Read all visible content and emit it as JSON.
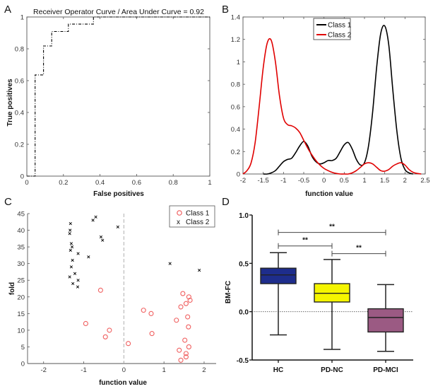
{
  "chart_data": [
    {
      "panel": "A",
      "type": "line",
      "title": "Receiver Operator Curve / Area Under Curve = 0.92",
      "xlabel": "False positives",
      "ylabel": "True positives",
      "xlim": [
        0,
        1
      ],
      "ylim": [
        0,
        1
      ],
      "xticks": [
        "0",
        "0.2",
        "0.4",
        "0.6",
        "0.8",
        "1"
      ],
      "yticks": [
        "0",
        "0.2",
        "0.4",
        "0.6",
        "0.8",
        "1"
      ],
      "grid": false,
      "series": [
        {
          "name": "ROC",
          "style": "dash-dot",
          "color": "#000000",
          "x": [
            0,
            0.045,
            0.045,
            0.091,
            0.091,
            0.136,
            0.136,
            0.227,
            0.227,
            0.364,
            0.364,
            1.0
          ],
          "y": [
            0,
            0,
            0.636,
            0.636,
            0.818,
            0.818,
            0.909,
            0.909,
            0.955,
            0.955,
            1.0,
            1.0
          ]
        }
      ]
    },
    {
      "panel": "B",
      "type": "line",
      "title": "",
      "xlabel": "function value",
      "ylabel": "",
      "xlim": [
        -2,
        2.5
      ],
      "ylim": [
        0,
        1.4
      ],
      "xticks": [
        "-2",
        "-1.5",
        "-1",
        "-0.5",
        "0",
        "0.5",
        "1",
        "1.5",
        "2",
        "2.5"
      ],
      "yticks": [
        "0",
        "0.2",
        "0.4",
        "0.6",
        "0.8",
        "1",
        "1.2",
        "1.4"
      ],
      "legend": {
        "position": "top-center",
        "entries": [
          "Class 1",
          "Class 2"
        ]
      },
      "grid": false,
      "series": [
        {
          "name": "Class 1",
          "color": "#000000",
          "x": [
            -1.5,
            -1.4,
            -1.3,
            -1.2,
            -1.1,
            -1.0,
            -0.9,
            -0.8,
            -0.7,
            -0.6,
            -0.5,
            -0.4,
            -0.3,
            -0.2,
            -0.1,
            0.0,
            0.1,
            0.2,
            0.3,
            0.4,
            0.5,
            0.6,
            0.7,
            0.8,
            0.9,
            1.0,
            1.1,
            1.2,
            1.3,
            1.4,
            1.5,
            1.6,
            1.7,
            1.8,
            1.9,
            2.0,
            2.1,
            2.2
          ],
          "y": [
            0.0,
            0.0,
            0.01,
            0.03,
            0.07,
            0.11,
            0.13,
            0.14,
            0.19,
            0.25,
            0.29,
            0.25,
            0.16,
            0.11,
            0.09,
            0.1,
            0.12,
            0.12,
            0.14,
            0.2,
            0.26,
            0.28,
            0.22,
            0.13,
            0.08,
            0.1,
            0.25,
            0.55,
            0.95,
            1.25,
            1.32,
            1.15,
            0.75,
            0.38,
            0.14,
            0.04,
            0.01,
            0.0
          ]
        },
        {
          "name": "Class 2",
          "color": "#e00000",
          "x": [
            -2.0,
            -1.9,
            -1.8,
            -1.7,
            -1.6,
            -1.5,
            -1.4,
            -1.3,
            -1.2,
            -1.1,
            -1.0,
            -0.9,
            -0.8,
            -0.7,
            -0.6,
            -0.5,
            -0.4,
            -0.3,
            -0.2,
            -0.1,
            0.0,
            0.1,
            0.2,
            0.3,
            0.4,
            0.5,
            0.6,
            0.7,
            0.8,
            0.9,
            1.0,
            1.1,
            1.2,
            1.3,
            1.4,
            1.5,
            1.6,
            1.7,
            1.8,
            1.9,
            2.0,
            2.1,
            2.2,
            2.3,
            2.4
          ],
          "y": [
            0.0,
            0.03,
            0.1,
            0.28,
            0.6,
            0.95,
            1.17,
            1.19,
            1.0,
            0.7,
            0.5,
            0.44,
            0.43,
            0.41,
            0.37,
            0.3,
            0.23,
            0.17,
            0.12,
            0.08,
            0.05,
            0.03,
            0.015,
            0.005,
            0.0,
            0.0,
            0.0,
            0.01,
            0.03,
            0.06,
            0.09,
            0.1,
            0.09,
            0.06,
            0.03,
            0.025,
            0.04,
            0.07,
            0.09,
            0.1,
            0.08,
            0.04,
            0.015,
            0.005,
            0.0
          ]
        }
      ]
    },
    {
      "panel": "C",
      "type": "scatter",
      "title": "",
      "xlabel": "function value",
      "ylabel": "fold",
      "xlim": [
        -2.4,
        2.3
      ],
      "ylim": [
        0,
        45
      ],
      "xticks": [
        "-2",
        "-1",
        "0",
        "1",
        "2"
      ],
      "yticks": [
        "0",
        "5",
        "10",
        "15",
        "20",
        "25",
        "30",
        "35",
        "40",
        "45"
      ],
      "reference_line": {
        "x": 0,
        "style": "dashed",
        "color": "#b0b0b0"
      },
      "legend": {
        "position": "top-right",
        "entries": [
          "Class 1",
          "Class 2"
        ]
      },
      "grid": false,
      "series": [
        {
          "name": "Class 1",
          "marker": "circle",
          "color": "#f06060",
          "points": [
            [
              -0.58,
              22
            ],
            [
              -0.95,
              12
            ],
            [
              -0.36,
              10
            ],
            [
              -0.46,
              8
            ],
            [
              0.11,
              6
            ],
            [
              0.49,
              16
            ],
            [
              0.68,
              15
            ],
            [
              0.7,
              9
            ],
            [
              1.47,
              21
            ],
            [
              1.62,
              20
            ],
            [
              1.65,
              19
            ],
            [
              1.55,
              18
            ],
            [
              1.42,
              17
            ],
            [
              1.59,
              14
            ],
            [
              1.31,
              13
            ],
            [
              1.61,
              11
            ],
            [
              1.52,
              7
            ],
            [
              1.62,
              5
            ],
            [
              1.38,
              4
            ],
            [
              1.55,
              3
            ],
            [
              1.55,
              2
            ],
            [
              1.42,
              1
            ]
          ]
        },
        {
          "name": "Class 2",
          "marker": "x",
          "color": "#000000",
          "points": [
            [
              -1.27,
              24
            ],
            [
              -1.15,
              23
            ],
            [
              -1.35,
              26
            ],
            [
              -1.22,
              27
            ],
            [
              -1.31,
              29
            ],
            [
              -1.28,
              31
            ],
            [
              -1.14,
              33
            ],
            [
              -1.33,
              34
            ],
            [
              -1.29,
              35
            ],
            [
              -1.31,
              36
            ],
            [
              -0.88,
              32
            ],
            [
              -1.35,
              39
            ],
            [
              -1.34,
              40
            ],
            [
              -1.33,
              42
            ],
            [
              -0.57,
              38
            ],
            [
              -0.53,
              37
            ],
            [
              -0.77,
              43
            ],
            [
              -0.7,
              44
            ],
            [
              -0.15,
              41
            ],
            [
              1.15,
              30
            ],
            [
              1.88,
              28
            ],
            [
              -1.14,
              25
            ]
          ]
        }
      ]
    },
    {
      "panel": "D",
      "type": "box",
      "title": "",
      "xlabel": "",
      "ylabel": "BM-FC",
      "ylim": [
        -0.5,
        1.0
      ],
      "yticks": [
        "-0.5",
        "0.0",
        "0.5",
        "1.0"
      ],
      "categories": [
        "HC",
        "PD-NC",
        "PD-MCI"
      ],
      "reference_line": {
        "y": 0,
        "style": "dotted"
      },
      "boxes": [
        {
          "name": "HC",
          "color": "#1e2d8c",
          "min": -0.24,
          "q1": 0.29,
          "median": 0.38,
          "q3": 0.45,
          "max": 0.61
        },
        {
          "name": "PD-NC",
          "color": "#f5f500",
          "min": -0.39,
          "q1": 0.1,
          "median": 0.19,
          "q3": 0.29,
          "max": 0.54
        },
        {
          "name": "PD-MCI",
          "color": "#9b5a83",
          "min": -0.41,
          "q1": -0.21,
          "median": -0.06,
          "q3": 0.03,
          "max": 0.28
        }
      ],
      "significance": [
        {
          "from": "HC",
          "to": "PD-MCI",
          "label": "**",
          "y": 0.82
        },
        {
          "from": "HC",
          "to": "PD-NC",
          "label": "**",
          "y": 0.68
        },
        {
          "from": "PD-NC",
          "to": "PD-MCI",
          "label": "**",
          "y": 0.6
        }
      ]
    }
  ],
  "panel_labels": [
    "A",
    "B",
    "C",
    "D"
  ]
}
